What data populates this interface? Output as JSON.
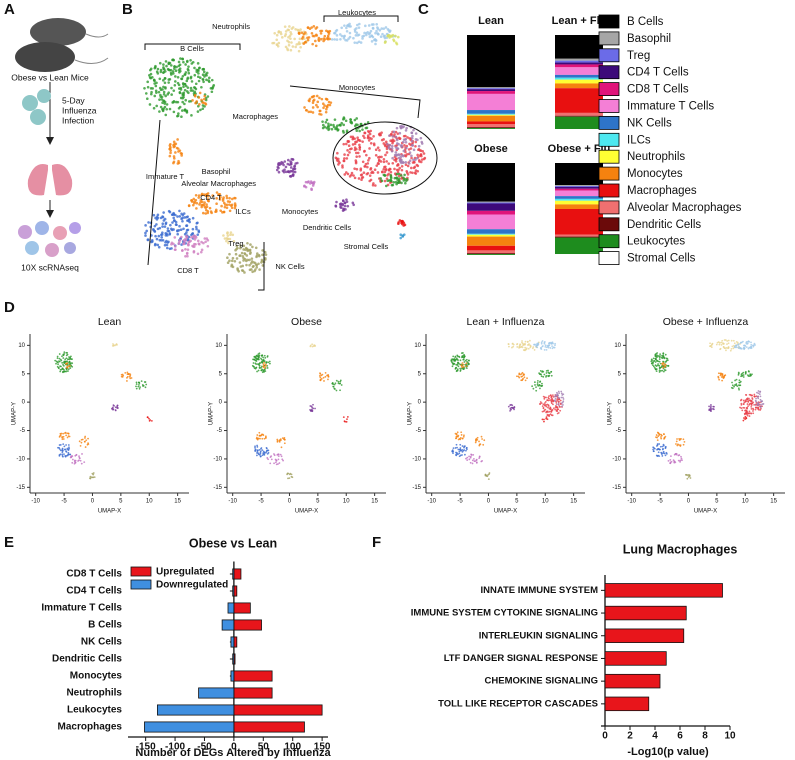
{
  "panel_labels": [
    "A",
    "B",
    "C",
    "D",
    "E",
    "F"
  ],
  "schematic": {
    "mice": "Obese vs Lean Mice",
    "infection": [
      "5-Day",
      "Influenza",
      "Infection"
    ],
    "sequencing": "10X scRNAseq"
  },
  "umap_annotations": [
    "B Cells",
    "Neutrophils",
    "Leukocytes",
    "Monocytes",
    "Macrophages",
    "Alveolar Macrophages",
    "Immature T",
    "Basophil",
    "CD4 T",
    "ILCs",
    "Monocytes",
    "Dendritic Cells",
    "Stromal Cells",
    "Treg",
    "CD8 T",
    "NK Cells"
  ],
  "chart_data": [
    {
      "type": "stacked_bar",
      "categories": [
        "Lean",
        "Lean + Flu",
        "Obese",
        "Obese + Flu"
      ],
      "series": [
        {
          "name": "B Cells",
          "color": "#000000",
          "values": [
            55,
            25,
            42,
            24
          ]
        },
        {
          "name": "Basophil",
          "color": "#a6a6a6",
          "values": [
            1,
            2,
            1,
            1
          ]
        },
        {
          "name": "Treg",
          "color": "#6b6be8",
          "values": [
            1,
            2,
            1,
            1
          ]
        },
        {
          "name": "CD4 T Cells",
          "color": "#3d0a7a",
          "values": [
            2,
            2,
            8,
            2
          ]
        },
        {
          "name": "CD8 T Cells",
          "color": "#e0147a",
          "values": [
            3,
            3,
            4,
            2
          ]
        },
        {
          "name": "Immature T Cells",
          "color": "#f47fd6",
          "values": [
            17,
            8,
            16,
            6
          ]
        },
        {
          "name": "NK Cells",
          "color": "#2e74c8",
          "values": [
            4,
            3,
            5,
            3
          ]
        },
        {
          "name": "ILCs",
          "color": "#4de8f0",
          "values": [
            1,
            2,
            1,
            2
          ]
        },
        {
          "name": "Neutrophils",
          "color": "#ffff33",
          "values": [
            1,
            4,
            2,
            4
          ]
        },
        {
          "name": "Monocytes",
          "color": "#f5820f",
          "values": [
            6,
            5,
            10,
            5
          ]
        },
        {
          "name": "Macrophages",
          "color": "#e81010",
          "values": [
            3,
            26,
            5,
            28
          ]
        },
        {
          "name": "Alveolar Macrophages",
          "color": "#f07070",
          "values": [
            3,
            3,
            3,
            2
          ]
        },
        {
          "name": "Dendritic Cells",
          "color": "#6b0a0a",
          "values": [
            1,
            1,
            1,
            1
          ]
        },
        {
          "name": "Leukocytes",
          "color": "#1e8c1e",
          "values": [
            1,
            13,
            1,
            18
          ]
        },
        {
          "name": "Stromal Cells",
          "color": "#ffffff",
          "values": [
            1,
            1,
            0,
            1
          ]
        }
      ],
      "ylim": [
        0,
        100
      ]
    },
    {
      "type": "scatter",
      "title": "Lean",
      "xlabel": "UMAP-X",
      "ylabel": "UMAP-Y",
      "xlim": [
        -11,
        17
      ],
      "ylim": [
        -16,
        12
      ],
      "xticks": [
        -10,
        -5,
        0,
        5,
        10,
        15
      ],
      "yticks": [
        -15,
        -10,
        -5,
        0,
        5,
        10
      ]
    },
    {
      "type": "scatter",
      "title": "Obese",
      "xlabel": "UMAP-X",
      "ylabel": "UMAP-Y",
      "xlim": [
        -11,
        17
      ],
      "ylim": [
        -16,
        12
      ],
      "xticks": [
        -10,
        -5,
        0,
        5,
        10,
        15
      ],
      "yticks": [
        -15,
        -10,
        -5,
        0,
        5,
        10
      ]
    },
    {
      "type": "scatter",
      "title": "Lean + Influenza",
      "xlabel": "UMAP-X",
      "ylabel": "UMAP-Y",
      "xlim": [
        -11,
        17
      ],
      "ylim": [
        -16,
        12
      ],
      "xticks": [
        -10,
        -5,
        0,
        5,
        10,
        15
      ],
      "yticks": [
        -15,
        -10,
        -5,
        0,
        5,
        10
      ]
    },
    {
      "type": "scatter",
      "title": "Obese + Influenza",
      "xlabel": "UMAP-X",
      "ylabel": "UMAP-Y",
      "xlim": [
        -11,
        17
      ],
      "ylim": [
        -16,
        12
      ],
      "xticks": [
        -10,
        -5,
        0,
        5,
        10,
        15
      ],
      "yticks": [
        -15,
        -10,
        -5,
        0,
        5,
        10
      ]
    },
    {
      "type": "bar",
      "orientation": "horizontal",
      "title": "Obese vs Lean",
      "xlabel": "Number of DEGs Altered by Influenza",
      "categories": [
        "CD8 T Cells",
        "CD4 T Cells",
        "Immature T Cells",
        "B Cells",
        "NK Cells",
        "Dendritic Cells",
        "Monocytes",
        "Neutrophils",
        "Leukocytes",
        "Macrophages"
      ],
      "series": [
        {
          "name": "Upregulated",
          "color": "#e8151b",
          "values": [
            12,
            5,
            28,
            47,
            5,
            2,
            65,
            65,
            150,
            120
          ]
        },
        {
          "name": "Downregulated",
          "color": "#3f8fe0",
          "values": [
            -2,
            -2,
            -10,
            -20,
            -5,
            -2,
            -5,
            -60,
            -130,
            -152
          ]
        }
      ],
      "xlim": [
        -180,
        160
      ],
      "xticks": [
        -150,
        -100,
        -50,
        0,
        50,
        100,
        150
      ],
      "legend": "upper left"
    },
    {
      "type": "bar",
      "orientation": "horizontal",
      "title": "Lung Macrophages",
      "xlabel": "-Log10(p value)",
      "categories": [
        "INNATE IMMUNE SYSTEM",
        "IMMUNE SYSTEM CYTOKINE SIGNALING",
        "INTERLEUKIN SIGNALING",
        "LTF DANGER SIGNAL RESPONSE",
        "CHEMOKINE SIGNALING",
        "TOLL LIKE RECEPTOR CASCADES"
      ],
      "values": [
        9.4,
        6.5,
        6.3,
        4.9,
        4.4,
        3.5
      ],
      "color": "#e8151b",
      "xlim": [
        0,
        10
      ],
      "xticks": [
        0,
        2,
        4,
        6,
        8,
        10
      ]
    }
  ]
}
